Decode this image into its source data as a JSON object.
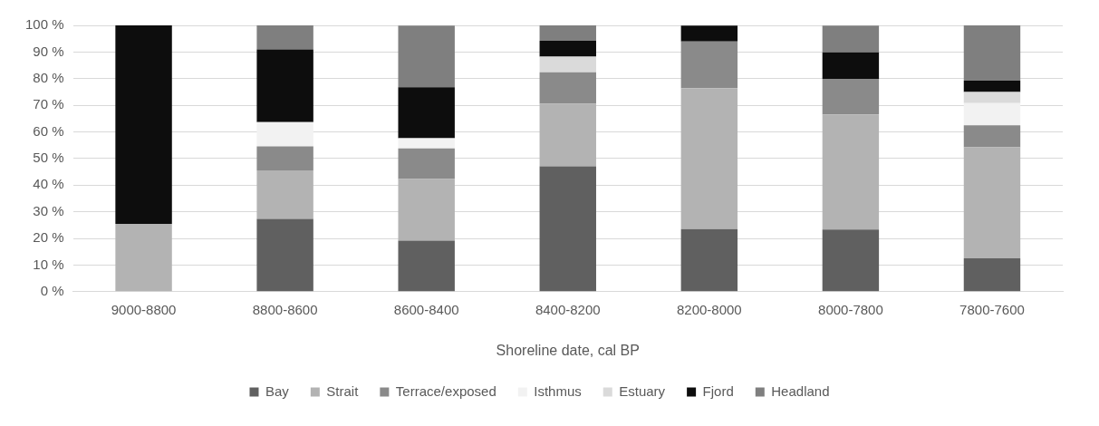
{
  "chart_data": {
    "type": "bar",
    "stacked": true,
    "xlabel": "Shoreline date, cal BP",
    "categories": [
      "9000-8800",
      "8800-8600",
      "8600-8400",
      "8400-8200",
      "8200-8000",
      "8000-7800",
      "7800-7600"
    ],
    "series": [
      {
        "name": "Bay",
        "color": "#606060",
        "values": [
          0,
          27.3,
          19.2,
          47.1,
          23.5,
          23.3,
          12.5
        ]
      },
      {
        "name": "Strait",
        "color": "#b3b3b3",
        "values": [
          25.5,
          18.2,
          23.1,
          23.5,
          52.9,
          43.3,
          41.7
        ]
      },
      {
        "name": "Terrace/exposed",
        "color": "#8a8a8a",
        "values": [
          0,
          9.1,
          11.5,
          11.8,
          17.6,
          13.3,
          8.3
        ]
      },
      {
        "name": "Isthmus",
        "color": "#f2f2f2",
        "values": [
          0,
          9.1,
          3.8,
          0,
          0,
          0,
          8.3
        ]
      },
      {
        "name": "Estuary",
        "color": "#dadada",
        "values": [
          0,
          0,
          0,
          5.9,
          0,
          0,
          4.2
        ]
      },
      {
        "name": "Fjord",
        "color": "#0d0d0d",
        "values": [
          74.5,
          27.3,
          19.2,
          5.9,
          5.9,
          10,
          4.2
        ]
      },
      {
        "name": "Headland",
        "color": "#7f7f7f",
        "values": [
          0,
          9.1,
          23.1,
          5.9,
          0,
          10,
          20.8
        ]
      }
    ],
    "ylim": [
      0,
      100
    ],
    "yticks": [
      {
        "value": 0,
        "label": "0 %"
      },
      {
        "value": 10,
        "label": "10 %"
      },
      {
        "value": 20,
        "label": "20 %"
      },
      {
        "value": 30,
        "label": "30 %"
      },
      {
        "value": 40,
        "label": "40 %"
      },
      {
        "value": 50,
        "label": "50 %"
      },
      {
        "value": 60,
        "label": "60 %"
      },
      {
        "value": 70,
        "label": "70 %"
      },
      {
        "value": 80,
        "label": "80 %"
      },
      {
        "value": 90,
        "label": "90 %"
      },
      {
        "value": 100,
        "label": "100 %"
      }
    ],
    "grid": "y",
    "legend": "bottom"
  }
}
